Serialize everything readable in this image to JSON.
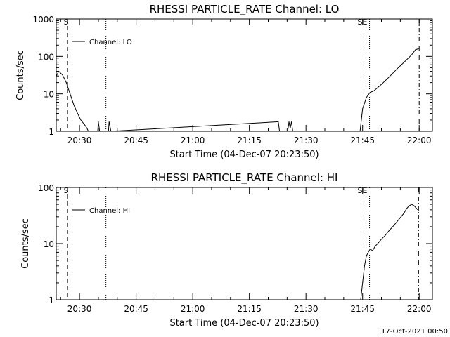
{
  "chart_data": [
    {
      "type": "line",
      "title": "RHESSI PARTICLE_RATE Channel: LO",
      "ylabel": "Counts/sec",
      "xlabel": "Start Time (04-Dec-07 20:23:50)",
      "yscale": "log",
      "ylim": [
        1,
        1000
      ],
      "yticks": [
        1,
        10,
        100,
        1000
      ],
      "ytick_labels": [
        "1",
        "10",
        "100",
        "1000"
      ],
      "xlim": [
        "20:23:50",
        "22:03:30"
      ],
      "xticks": [
        "20:30",
        "20:45",
        "21:00",
        "21:15",
        "21:30",
        "21:45",
        "22:00"
      ],
      "legend": "top-left",
      "series": [
        {
          "name": "Channel: LO",
          "x": [
            "20:23:50",
            "20:24:30",
            "20:25:30",
            "20:26:30",
            "20:27:30",
            "20:28:30",
            "20:29:30",
            "20:30:20",
            "20:31:20",
            "20:32:00",
            "20:32:20",
            "20:34:50",
            "20:35:00",
            "20:35:20",
            "20:37:40",
            "20:37:50",
            "20:38:20",
            "21:22:40",
            "21:23:00",
            "21:25:10",
            "21:25:30",
            "21:25:50",
            "21:26:10",
            "21:26:30",
            "21:44:20",
            "21:45:00",
            "21:46:00",
            "21:47:00",
            "21:48:00",
            "21:50:00",
            "21:52:00",
            "21:54:00",
            "21:56:00",
            "21:58:00",
            "21:59:00",
            "21:59:50"
          ],
          "y": [
            30,
            40,
            32,
            20,
            10,
            5,
            3,
            2,
            1.5,
            1.2,
            1,
            1,
            1.8,
            1,
            1,
            1.8,
            1,
            1.8,
            1,
            1,
            1.8,
            1.2,
            1.8,
            1,
            1,
            4,
            8,
            11,
            12,
            18,
            28,
            45,
            70,
            110,
            150,
            160
          ]
        }
      ],
      "vlines": [
        {
          "x": "20:26:50",
          "style": "dashed",
          "label": "S"
        },
        {
          "x": "20:37:00",
          "style": "dotted"
        },
        {
          "x": "21:45:20",
          "style": "dashed",
          "label": "SE"
        },
        {
          "x": "21:46:50",
          "style": "dotted"
        },
        {
          "x": "22:00:00",
          "style": "dash-dot"
        }
      ]
    },
    {
      "type": "line",
      "title": "RHESSI PARTICLE_RATE Channel: HI",
      "ylabel": "Counts/sec",
      "xlabel": "Start Time (04-Dec-07 20:23:50)",
      "yscale": "log",
      "ylim": [
        1,
        100
      ],
      "yticks": [
        1,
        10,
        100
      ],
      "ytick_labels": [
        "1",
        "10",
        "100"
      ],
      "xlim": [
        "20:23:50",
        "22:03:30"
      ],
      "xticks": [
        "20:30",
        "20:45",
        "21:00",
        "21:15",
        "21:30",
        "21:45",
        "22:00"
      ],
      "legend": "top-left",
      "series": [
        {
          "name": "Channel: HI",
          "x": [
            "21:44:30",
            "21:45:00",
            "21:45:30",
            "21:46:00",
            "21:46:30",
            "21:47:00",
            "21:47:40",
            "21:48:20",
            "21:49:00",
            "21:50:00",
            "21:51:00",
            "21:52:00",
            "21:53:00",
            "21:54:00",
            "21:55:00",
            "21:56:00",
            "21:56:40",
            "21:57:20",
            "21:58:00",
            "21:58:40",
            "21:59:20",
            "22:00:00"
          ],
          "y": [
            1,
            2,
            4,
            6,
            7,
            8,
            7.5,
            9,
            10,
            12,
            14,
            17,
            20,
            24,
            29,
            35,
            42,
            47,
            50,
            47,
            42,
            38
          ]
        }
      ],
      "vlines": [
        {
          "x": "20:26:50",
          "style": "dashed",
          "label": "S"
        },
        {
          "x": "20:37:00",
          "style": "dotted"
        },
        {
          "x": "21:45:20",
          "style": "dashed",
          "label": "SE"
        },
        {
          "x": "21:46:50",
          "style": "dotted"
        },
        {
          "x": "21:59:50",
          "style": "dash-dot"
        }
      ]
    }
  ],
  "footer": {
    "timestamp": "17-Oct-2021 00:50"
  }
}
